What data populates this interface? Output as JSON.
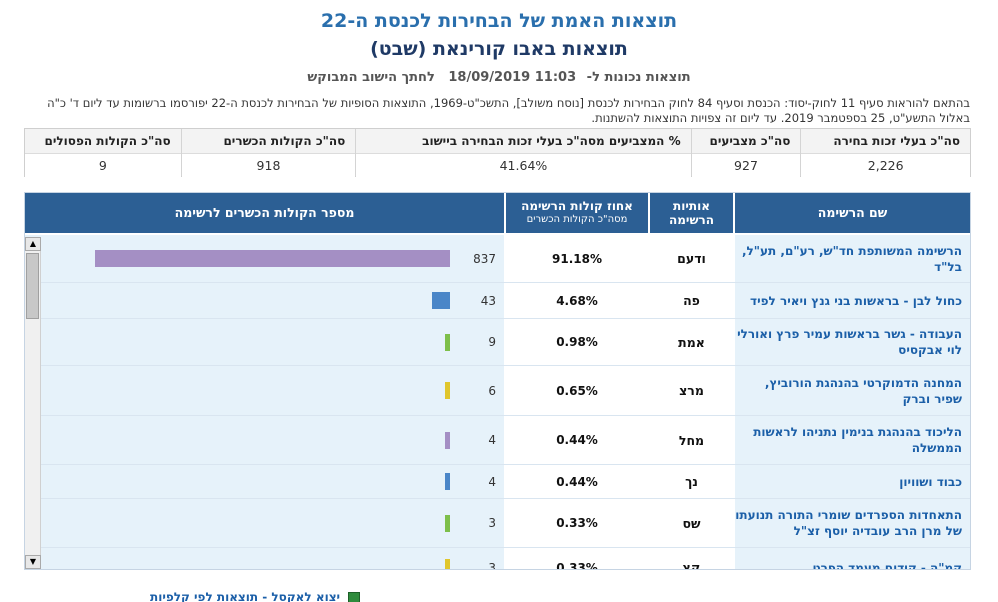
{
  "header": {
    "title": "תוצאות האמת של הבחירות לכנסת ה-22",
    "locality": "תוצאות באבו קורינאת (שבט)",
    "valid_label": "תוצאות נכונות ל-",
    "datetime": "11:03 18/09/2019",
    "locality_link": "לחתך הישוב המבוקש"
  },
  "notice": "בהתאם להוראות סעיף 11 לחוק-יסוד: הכנסת וסעיף 84 לחוק הבחירות לכנסת [נוסח משולב], התשכ\"ט-1969, התוצאות הסופיות של הבחירות לכנסת ה-22 יפורסמו ברשומות עד ליום ד' כ\"ה באלול התשע\"ט, 25 בספטמבר 2019. עד ליום זה צפויות התוצאות להשתנות.",
  "summary": [
    {
      "label": "סה\"כ בעלי זכות בחירה",
      "value": "2,226"
    },
    {
      "label": "סה\"כ מצביעים",
      "value": "927"
    },
    {
      "label": "% המצביעים מסה\"כ בעלי זכות הבחירה ביישוב",
      "value": "41.64%"
    },
    {
      "label": "סה\"כ הקולות הכשרים",
      "value": "918"
    },
    {
      "label": "סה\"כ הקולות הפסולים",
      "value": "9"
    }
  ],
  "table": {
    "headers": {
      "name": "שם הרשימה",
      "letters": "אותיות הרשימה",
      "pct": "אחוז קולות הרשימה",
      "pct_sub": "מסה\"כ הקולות הכשרים",
      "votes": "מספר הקולות הכשרים לרשימה"
    },
    "rows": [
      {
        "name": "הרשימה המשותפת חד\"ש, רע\"ם, תע\"ל, בל\"ד",
        "letters": "ודעם",
        "pct": "91.18%",
        "votes": "837",
        "share": 0.9118,
        "color": "#a48fc4"
      },
      {
        "name": "כחול לבן - בראשות בני גנץ ויאיר לפיד",
        "letters": "פה",
        "pct": "4.68%",
        "votes": "43",
        "share": 0.0468,
        "color": "#4a86c8"
      },
      {
        "name": "העבודה - גשר בראשות עמיר פרץ ואורלי לוי אבקסיס",
        "letters": "אמת",
        "pct": "0.98%",
        "votes": "9",
        "share": 0.0098,
        "color": "#7dbf4a"
      },
      {
        "name": "המחנה הדמוקרטי בהנהגת הורוביץ, שפיר וברק",
        "letters": "מרצ",
        "pct": "0.65%",
        "votes": "6",
        "share": 0.0065,
        "color": "#e0c62c"
      },
      {
        "name": "הליכוד בהנהגת בנימין נתניהו לראשות הממשלה",
        "letters": "מחל",
        "pct": "0.44%",
        "votes": "4",
        "share": 0.0044,
        "color": "#a48fc4"
      },
      {
        "name": "כבוד ושוויון",
        "letters": "נך",
        "pct": "0.44%",
        "votes": "4",
        "share": 0.0044,
        "color": "#4a86c8"
      },
      {
        "name": "התאחדות הספרדים שומרי התורה תנועתו של מרן הרב עובדיה יוסף זצ\"ל",
        "letters": "שס",
        "pct": "0.33%",
        "votes": "3",
        "share": 0.0033,
        "color": "#7dbf4a"
      },
      {
        "name": "קמ\"ה - קידום מעמד הפרט",
        "letters": "קץ",
        "pct": "0.33%",
        "votes": "3",
        "share": 0.0033,
        "color": "#e0c62c"
      }
    ]
  },
  "footer": {
    "export_label": "יצוא לאקסל - תוצאות לפי קלפיות"
  }
}
